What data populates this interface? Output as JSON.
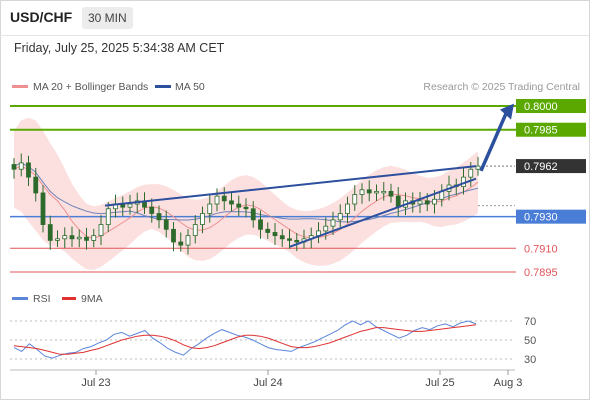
{
  "header": {
    "symbol": "USD/CHF",
    "timeframe": "30 MIN",
    "datetime": "Friday, July 25, 2025 5:34:38 AM CET"
  },
  "legend": {
    "ma20": "MA 20 + Bollinger Bands",
    "ma50": "MA 50",
    "credit": "Research © 2025 Trading Central"
  },
  "rsi_legend": {
    "rsi": "RSI",
    "ma": "9MA"
  },
  "colors": {
    "green": "#5aa800",
    "blue_level": "#4a7dd6",
    "red_level": "#e0555a",
    "current_price_box": "#333333",
    "candle": "#2d6b2d",
    "trendline": "#2c4f9e",
    "bollinger_fill": "#fbd5d5",
    "ma20": "#ef8f8f",
    "ma50": "#6d83b8",
    "rsi": "#5b85d9",
    "rsi_ma": "#e03030"
  },
  "chart_data": [
    {
      "type": "candlestick",
      "title": "USD/CHF 30 MIN",
      "x_ticks": [
        "Jul 23",
        "Jul 24",
        "Jul 25",
        "Aug 3"
      ],
      "current_price": 0.7962,
      "levels": [
        {
          "value": 0.8,
          "label": "0.8000",
          "kind": "target",
          "color": "green"
        },
        {
          "value": 0.7985,
          "label": "0.7985",
          "kind": "resistance",
          "color": "green"
        },
        {
          "value": 0.7962,
          "label": "0.7962",
          "kind": "current",
          "color": "dark"
        },
        {
          "value": 0.793,
          "label": "0.7930",
          "kind": "pivot",
          "color": "blue"
        },
        {
          "value": 0.791,
          "label": "0.7910",
          "kind": "support",
          "color": "red"
        },
        {
          "value": 0.7895,
          "label": "0.7895",
          "kind": "support",
          "color": "red"
        }
      ],
      "ohlc_close_approx": [
        0.796,
        0.7964,
        0.7955,
        0.7945,
        0.7925,
        0.7915,
        0.7916,
        0.7918,
        0.7916,
        0.7917,
        0.7915,
        0.7918,
        0.7925,
        0.7935,
        0.7938,
        0.7936,
        0.7938,
        0.794,
        0.7936,
        0.7932,
        0.7928,
        0.7922,
        0.7914,
        0.7912,
        0.7918,
        0.7925,
        0.7932,
        0.7938,
        0.7943,
        0.794,
        0.7938,
        0.7936,
        0.7935,
        0.7928,
        0.7922,
        0.792,
        0.7918,
        0.7916,
        0.7915,
        0.7914,
        0.7916,
        0.7918,
        0.7921,
        0.7924,
        0.7928,
        0.7932,
        0.7938,
        0.7944,
        0.7947,
        0.7945,
        0.7946,
        0.7946,
        0.7943,
        0.7936,
        0.794,
        0.7938,
        0.794,
        0.7938,
        0.7941,
        0.7946,
        0.795,
        0.7949,
        0.7955,
        0.796,
        0.7962
      ],
      "trendlines": [
        {
          "name": "upper channel",
          "from": 0.7937,
          "to": 0.7962
        },
        {
          "name": "lower channel",
          "from": 0.7911,
          "to": 0.7954
        }
      ]
    },
    {
      "type": "line",
      "title": "RSI",
      "y_ticks": [
        70,
        50,
        30
      ],
      "series": [
        {
          "name": "RSI",
          "values": [
            42,
            38,
            46,
            40,
            33,
            31,
            34,
            36,
            37,
            41,
            43,
            47,
            50,
            56,
            58,
            54,
            57,
            60,
            52,
            47,
            41,
            37,
            34,
            41,
            46,
            52,
            57,
            61,
            58,
            55,
            53,
            50,
            46,
            42,
            40,
            39,
            38,
            42,
            45,
            48,
            52,
            56,
            60,
            66,
            70,
            66,
            70,
            64,
            60,
            56,
            52,
            55,
            60,
            63,
            61,
            65,
            67,
            64,
            68,
            70,
            67
          ]
        },
        {
          "name": "9MA",
          "values": [
            44,
            43,
            42,
            41,
            39,
            37,
            35,
            35,
            36,
            37,
            39,
            41,
            44,
            47,
            50,
            52,
            54,
            55,
            55,
            54,
            52,
            49,
            45,
            42,
            41,
            42,
            44,
            47,
            50,
            53,
            55,
            55,
            54,
            52,
            49,
            46,
            43,
            42,
            42,
            43,
            45,
            47,
            50,
            53,
            56,
            59,
            61,
            63,
            63,
            62,
            61,
            60,
            59,
            59,
            60,
            61,
            62,
            63,
            64,
            65,
            66
          ]
        }
      ]
    }
  ]
}
